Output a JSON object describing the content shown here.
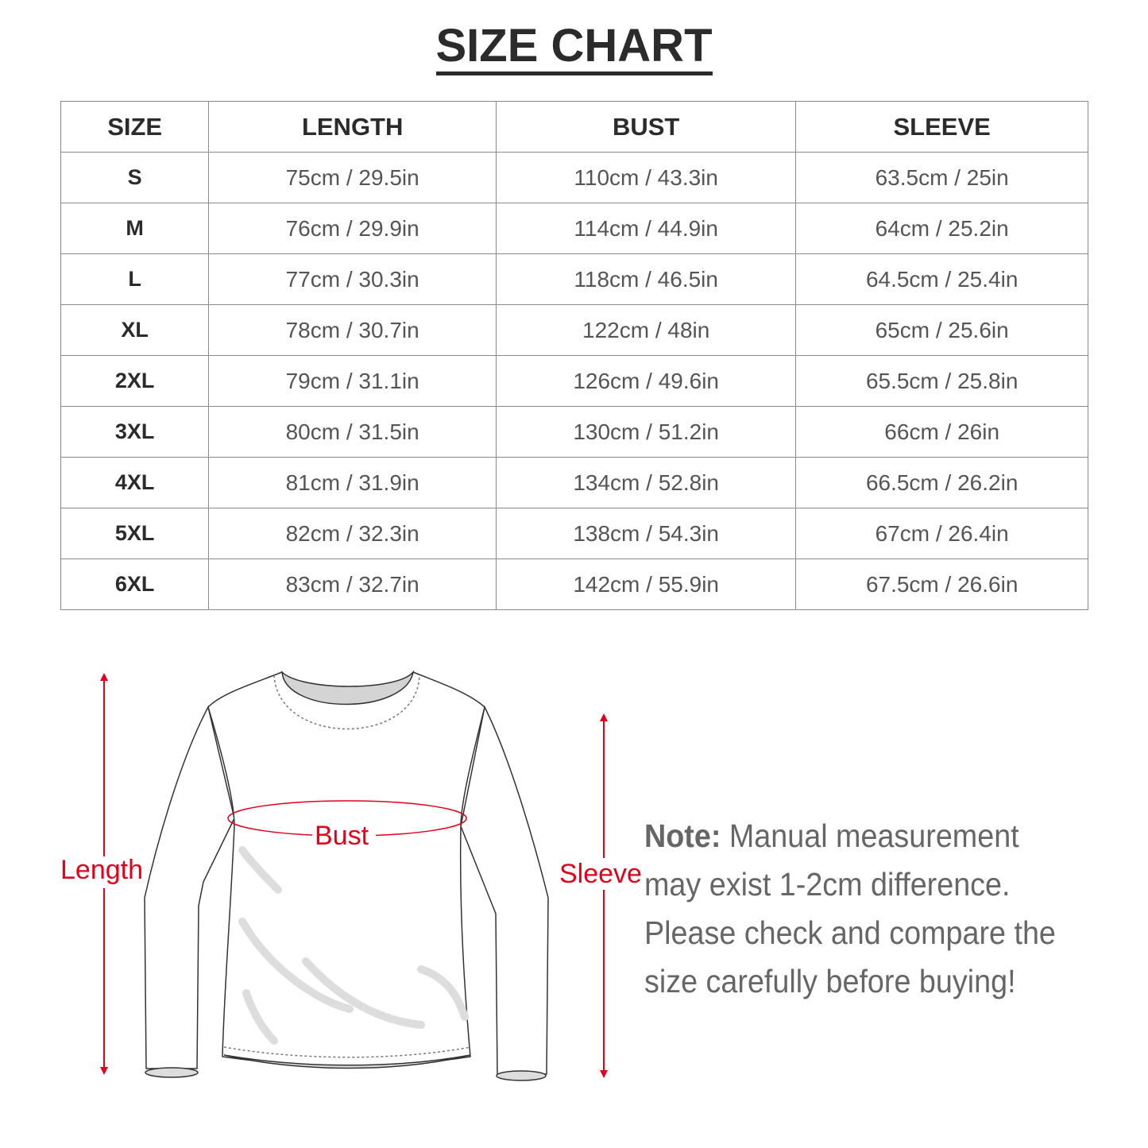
{
  "title": "SIZE CHART",
  "table": {
    "headers": [
      "SIZE",
      "LENGTH",
      "BUST",
      "SLEEVE"
    ],
    "rows": [
      [
        "S",
        "75cm / 29.5in",
        "110cm / 43.3in",
        "63.5cm / 25in"
      ],
      [
        "M",
        "76cm / 29.9in",
        "114cm / 44.9in",
        "64cm / 25.2in"
      ],
      [
        "L",
        "77cm / 30.3in",
        "118cm / 46.5in",
        "64.5cm / 25.4in"
      ],
      [
        "XL",
        "78cm / 30.7in",
        "122cm / 48in",
        "65cm / 25.6in"
      ],
      [
        "2XL",
        "79cm / 31.1in",
        "126cm / 49.6in",
        "65.5cm / 25.8in"
      ],
      [
        "3XL",
        "80cm / 31.5in",
        "130cm / 51.2in",
        "66cm / 26in"
      ],
      [
        "4XL",
        "81cm / 31.9in",
        "134cm / 52.8in",
        "66.5cm / 26.2in"
      ],
      [
        "5XL",
        "82cm / 32.3in",
        "138cm / 54.3in",
        "67cm / 26.4in"
      ],
      [
        "6XL",
        "83cm / 32.7in",
        "142cm / 55.9in",
        "67.5cm / 26.6in"
      ]
    ]
  },
  "diagram": {
    "length_label": "Length",
    "bust_label": "Bust",
    "sleeve_label": "Sleeve",
    "accent_color": "#e2001a"
  },
  "note": {
    "label": "Note:",
    "text": " Manual measurement may exist 1-2cm difference. Please check and compare the size carefully before buying!"
  }
}
